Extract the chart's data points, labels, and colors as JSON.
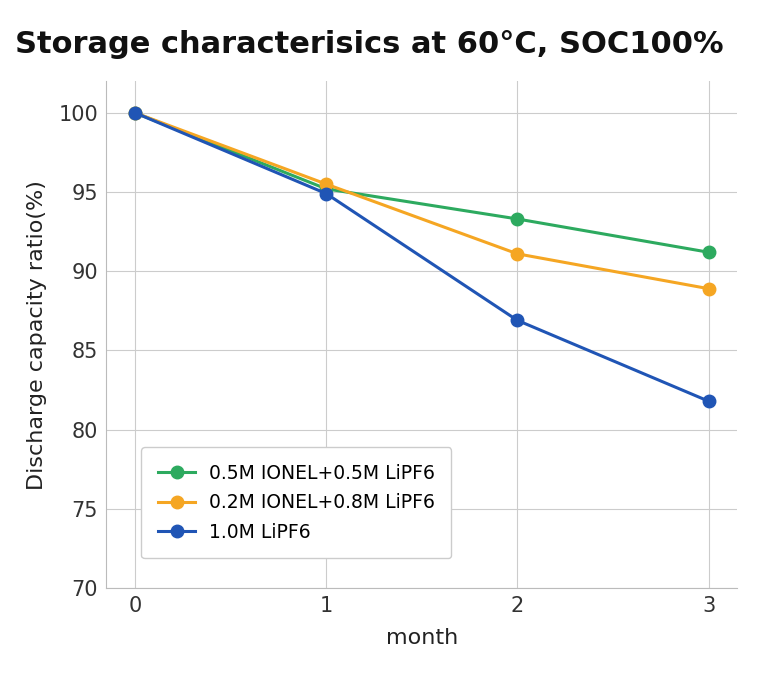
{
  "title": "Storage characterisics at 60°C, SOC100%",
  "xlabel": "month",
  "ylabel": "Discharge capacity ratio(%)",
  "x": [
    0,
    1,
    2,
    3
  ],
  "series": [
    {
      "label": "0.5M IONEL+0.5M LiPF6",
      "values": [
        100,
        95.2,
        93.3,
        91.2
      ],
      "color": "#2daa5f",
      "marker": "o",
      "linewidth": 2.2,
      "markersize": 9
    },
    {
      "label": "0.2M IONEL+0.8M LiPF6",
      "values": [
        100,
        95.5,
        91.1,
        88.9
      ],
      "color": "#f5a623",
      "marker": "o",
      "linewidth": 2.2,
      "markersize": 9
    },
    {
      "label": "1.0M LiPF6",
      "values": [
        100,
        94.9,
        86.9,
        81.8
      ],
      "color": "#2055b5",
      "marker": "o",
      "linewidth": 2.2,
      "markersize": 9
    }
  ],
  "ylim": [
    70,
    102
  ],
  "yticks": [
    70,
    75,
    80,
    85,
    90,
    95,
    100
  ],
  "xticks": [
    0,
    1,
    2,
    3
  ],
  "grid_color": "#cccccc",
  "grid_linewidth": 0.8,
  "background_color": "#ffffff",
  "title_fontsize": 22,
  "label_fontsize": 16,
  "tick_fontsize": 15,
  "legend_fontsize": 13.5
}
